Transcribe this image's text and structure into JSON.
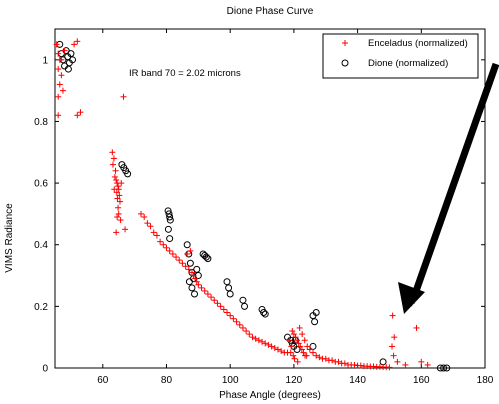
{
  "chart_data": {
    "type": "scatter",
    "title": "Dione Phase Curve",
    "xlabel": "Phase Angle (degrees)",
    "ylabel": "VIMS Radiance",
    "annotation": "IR band 70 = 2.02 microns",
    "xlim": [
      45,
      180
    ],
    "ylim": [
      0,
      1.1
    ],
    "xticks": [
      60,
      80,
      100,
      120,
      140,
      160,
      180
    ],
    "yticks": [
      0,
      0.2,
      0.4,
      0.6,
      0.8,
      1
    ],
    "legend_position": "top-right",
    "grid": false,
    "series": [
      {
        "name": "Enceladus (normalized)",
        "marker": "plus",
        "color": "#ff0000",
        "points": [
          [
            45.5,
            1.05
          ],
          [
            46,
            1.02
          ],
          [
            46.5,
            1.0
          ],
          [
            46,
            0.97
          ],
          [
            47,
            0.95
          ],
          [
            46.5,
            0.92
          ],
          [
            47.5,
            0.9
          ],
          [
            46,
            0.88
          ],
          [
            48,
            1.03
          ],
          [
            47,
            1.0
          ],
          [
            46,
            0.82
          ],
          [
            52,
            0.82
          ],
          [
            53,
            0.83
          ],
          [
            51,
            1.05
          ],
          [
            52,
            1.06
          ],
          [
            63,
            0.7
          ],
          [
            63.5,
            0.68
          ],
          [
            63.2,
            0.66
          ],
          [
            64,
            0.64
          ],
          [
            63.8,
            0.62
          ],
          [
            64.2,
            0.61
          ],
          [
            64.5,
            0.6
          ],
          [
            64.8,
            0.59
          ],
          [
            65,
            0.58
          ],
          [
            64.4,
            0.57
          ],
          [
            65.2,
            0.56
          ],
          [
            64.6,
            0.55
          ],
          [
            65.4,
            0.54
          ],
          [
            64.8,
            0.52
          ],
          [
            65,
            0.5
          ],
          [
            64.5,
            0.49
          ],
          [
            65.6,
            0.48
          ],
          [
            64.2,
            0.44
          ],
          [
            63.6,
            0.58
          ],
          [
            65.8,
            0.6
          ],
          [
            66.5,
            0.88
          ],
          [
            67,
            0.45
          ],
          [
            72,
            0.5
          ],
          [
            73,
            0.49
          ],
          [
            74,
            0.47
          ],
          [
            75,
            0.46
          ],
          [
            76,
            0.44
          ],
          [
            77,
            0.43
          ],
          [
            78,
            0.41
          ],
          [
            79,
            0.4
          ],
          [
            80,
            0.39
          ],
          [
            81,
            0.38
          ],
          [
            82,
            0.37
          ],
          [
            83,
            0.36
          ],
          [
            84,
            0.35
          ],
          [
            85,
            0.34
          ],
          [
            86,
            0.33
          ],
          [
            87,
            0.32
          ],
          [
            86.5,
            0.37
          ],
          [
            87.5,
            0.38
          ],
          [
            88,
            0.31
          ],
          [
            88.5,
            0.3
          ],
          [
            89,
            0.29
          ],
          [
            89.5,
            0.28
          ],
          [
            90,
            0.27
          ],
          [
            91,
            0.26
          ],
          [
            92,
            0.25
          ],
          [
            93,
            0.24
          ],
          [
            94,
            0.23
          ],
          [
            95,
            0.22
          ],
          [
            96,
            0.21
          ],
          [
            97,
            0.2
          ],
          [
            98,
            0.19
          ],
          [
            99,
            0.18
          ],
          [
            100,
            0.17
          ],
          [
            101,
            0.16
          ],
          [
            102,
            0.15
          ],
          [
            103,
            0.14
          ],
          [
            104,
            0.13
          ],
          [
            105,
            0.12
          ],
          [
            106,
            0.11
          ],
          [
            107,
            0.1
          ],
          [
            108,
            0.095
          ],
          [
            109,
            0.09
          ],
          [
            110,
            0.085
          ],
          [
            111,
            0.08
          ],
          [
            112,
            0.075
          ],
          [
            113,
            0.07
          ],
          [
            114,
            0.065
          ],
          [
            115,
            0.06
          ],
          [
            116,
            0.055
          ],
          [
            117,
            0.05
          ],
          [
            118,
            0.05
          ],
          [
            119,
            0.05
          ],
          [
            119.5,
            0.12
          ],
          [
            120,
            0.11
          ],
          [
            120.5,
            0.1
          ],
          [
            121,
            0.09
          ],
          [
            121.5,
            0.08
          ],
          [
            122,
            0.07
          ],
          [
            122.5,
            0.06
          ],
          [
            123,
            0.05
          ],
          [
            123.5,
            0.04
          ],
          [
            124,
            0.04
          ],
          [
            120.2,
            0.03
          ],
          [
            121.2,
            0.02
          ],
          [
            119.2,
            0.07
          ],
          [
            118.6,
            0.09
          ],
          [
            121.8,
            0.13
          ],
          [
            122.6,
            0.11
          ],
          [
            123.4,
            0.09
          ],
          [
            124.2,
            0.07
          ],
          [
            125,
            0.06
          ],
          [
            119.8,
            0.04
          ],
          [
            126,
            0.05
          ],
          [
            127,
            0.04
          ],
          [
            128,
            0.035
          ],
          [
            129,
            0.03
          ],
          [
            130,
            0.03
          ],
          [
            131,
            0.025
          ],
          [
            132,
            0.025
          ],
          [
            133,
            0.02
          ],
          [
            134,
            0.02
          ],
          [
            135,
            0.015
          ],
          [
            136,
            0.015
          ],
          [
            137,
            0.01
          ],
          [
            138,
            0.01
          ],
          [
            139,
            0.01
          ],
          [
            140,
            0.008
          ],
          [
            141,
            0.008
          ],
          [
            142,
            0.006
          ],
          [
            143,
            0.006
          ],
          [
            144,
            0.005
          ],
          [
            145,
            0.005
          ],
          [
            146,
            0.004
          ],
          [
            147,
            0.004
          ],
          [
            148,
            0.003
          ],
          [
            149,
            0.003
          ],
          [
            150,
            0.002
          ],
          [
            151,
            0.17
          ],
          [
            151.5,
            0.1
          ],
          [
            150.8,
            0.07
          ],
          [
            151.3,
            0.04
          ],
          [
            152.5,
            0.02
          ],
          [
            155,
            0.01
          ],
          [
            157,
            0.21
          ],
          [
            158.5,
            0.13
          ],
          [
            160,
            0.02
          ],
          [
            162,
            0.01
          ]
        ]
      },
      {
        "name": "Dione (normalized)",
        "marker": "circle",
        "color": "#000000",
        "points": [
          [
            46.5,
            1.05
          ],
          [
            47,
            1.02
          ],
          [
            47.5,
            1.0
          ],
          [
            48,
            0.98
          ],
          [
            48.5,
            1.03
          ],
          [
            49,
            1.01
          ],
          [
            49.5,
            0.99
          ],
          [
            50,
            1.02
          ],
          [
            50.5,
            1.0
          ],
          [
            49.2,
            0.97
          ],
          [
            66,
            0.66
          ],
          [
            66.6,
            0.65
          ],
          [
            67.2,
            0.64
          ],
          [
            67.8,
            0.63
          ],
          [
            80.5,
            0.51
          ],
          [
            80.8,
            0.5
          ],
          [
            81,
            0.49
          ],
          [
            81.2,
            0.48
          ],
          [
            80.6,
            0.45
          ],
          [
            81,
            0.42
          ],
          [
            86.5,
            0.4
          ],
          [
            87,
            0.37
          ],
          [
            87.5,
            0.34
          ],
          [
            88,
            0.31
          ],
          [
            88.5,
            0.29
          ],
          [
            88,
            0.26
          ],
          [
            88.8,
            0.24
          ],
          [
            87.2,
            0.28
          ],
          [
            89.5,
            0.32
          ],
          [
            90,
            0.3
          ],
          [
            91.5,
            0.37
          ],
          [
            92,
            0.365
          ],
          [
            92.5,
            0.36
          ],
          [
            93,
            0.355
          ],
          [
            99,
            0.28
          ],
          [
            99.5,
            0.26
          ],
          [
            100,
            0.24
          ],
          [
            104,
            0.22
          ],
          [
            104.5,
            0.2
          ],
          [
            110,
            0.19
          ],
          [
            110.5,
            0.18
          ],
          [
            111,
            0.175
          ],
          [
            118,
            0.1
          ],
          [
            119,
            0.09
          ],
          [
            119.5,
            0.08
          ],
          [
            120,
            0.07
          ],
          [
            120.5,
            0.09
          ],
          [
            121,
            0.06
          ],
          [
            126,
            0.17
          ],
          [
            126.5,
            0.15
          ],
          [
            127,
            0.18
          ],
          [
            126,
            0.07
          ],
          [
            148,
            0.02
          ],
          [
            166,
            0.0
          ],
          [
            167,
            0.0
          ],
          [
            168,
            0.0
          ]
        ]
      }
    ]
  }
}
